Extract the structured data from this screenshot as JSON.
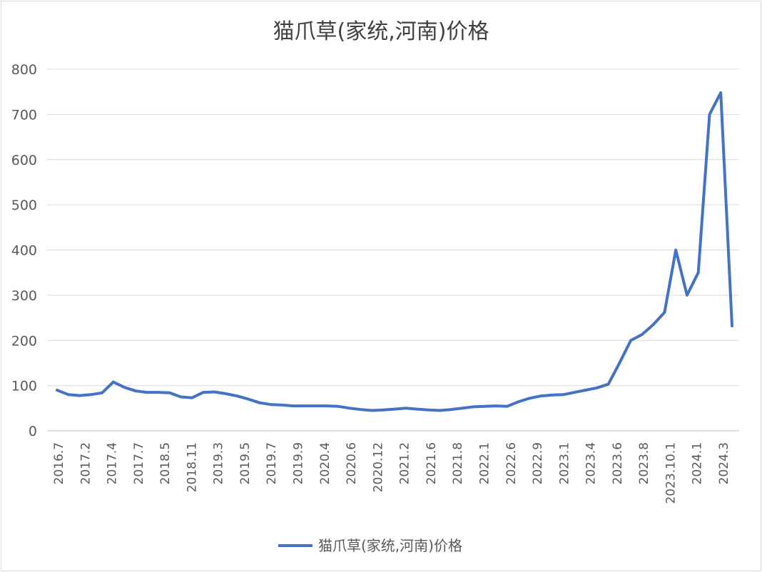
{
  "chart_data": {
    "type": "line",
    "title": "猫爪草(家统,河南)价格",
    "xlabel": "",
    "ylabel": "",
    "ylim": [
      0,
      800
    ],
    "yticks": [
      0,
      100,
      200,
      300,
      400,
      500,
      600,
      700,
      800
    ],
    "grid": true,
    "legend_position": "bottom",
    "color": "#4472c4",
    "tick_labels": [
      "2016.7",
      "2017.2",
      "2017.4",
      "2017.7",
      "2018.5",
      "2018.11",
      "2019.3",
      "2019.5",
      "2019.7",
      "2019.9",
      "2020.4",
      "2020.6",
      "2020.12",
      "2021.2",
      "2021.6",
      "2021.8",
      "2022.1",
      "2022.6",
      "2022.9",
      "2023.1",
      "2023.4",
      "2023.6",
      "2023.8",
      "2023.10.1",
      "2024.1",
      "2024.3"
    ],
    "series": [
      {
        "name": "猫爪草(家统,河南)价格",
        "values": [
          90,
          80,
          78,
          80,
          84,
          108,
          96,
          88,
          85,
          85,
          84,
          75,
          73,
          85,
          86,
          82,
          77,
          70,
          62,
          58,
          57,
          55,
          55,
          55,
          55,
          54,
          50,
          47,
          45,
          46,
          48,
          50,
          48,
          46,
          45,
          47,
          50,
          53,
          54,
          55,
          54,
          64,
          72,
          77,
          79,
          80,
          85,
          90,
          95,
          103,
          150,
          200,
          213,
          235,
          262,
          400,
          300,
          350,
          700,
          748,
          232
        ]
      }
    ]
  }
}
